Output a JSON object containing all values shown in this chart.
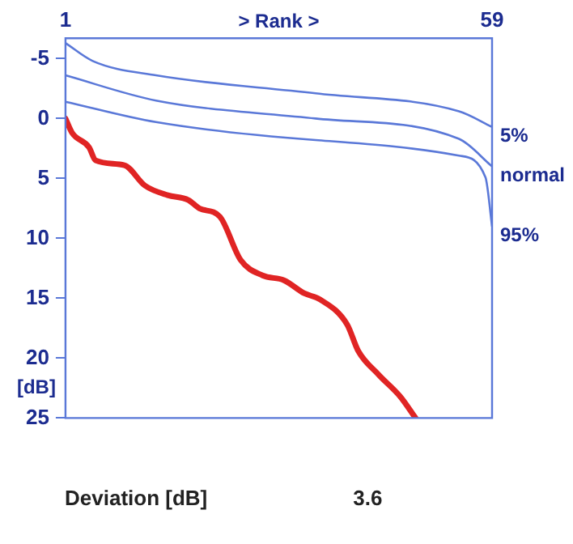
{
  "chart_data": {
    "type": "line",
    "xlabel": "> Rank >",
    "ylabel": "[dB]",
    "xlim": [
      1,
      59
    ],
    "xticks": [
      1,
      59
    ],
    "ylim": [
      25,
      -6.7
    ],
    "yticks": [
      -5,
      0,
      5,
      10,
      15,
      20,
      25
    ],
    "grid": false,
    "legend": false,
    "marker": "none",
    "line_style": "solid",
    "series": [
      {
        "name": "5%",
        "color": "#5a78d8",
        "x": [
          1,
          4.7,
          13.3,
          35,
          54.5,
          59
        ],
        "values": [
          -6.3,
          -4.8,
          -3.6,
          -2.1,
          -0.6,
          0.7
        ]
      },
      {
        "name": "normal",
        "color": "#5a78d8",
        "x": [
          1,
          13.3,
          35,
          54.5,
          59
        ],
        "values": [
          -3.6,
          -1.5,
          0,
          1.7,
          4.0
        ]
      },
      {
        "name": "95%",
        "color": "#5a78d8",
        "x": [
          1,
          13.3,
          35,
          54.5,
          58.1,
          59
        ],
        "values": [
          -1.4,
          0.3,
          1.8,
          3.1,
          4.9,
          9.0
        ]
      },
      {
        "color": "#e02424",
        "x": [
          1,
          1.9,
          4.2,
          5.1,
          9,
          11.8,
          14.9,
          17.7,
          19.2,
          22,
          24.8,
          27.8,
          30.7,
          33.5,
          35.6,
          39.3,
          40.8,
          43.6,
          46.5,
          48.6
        ],
        "values": [
          0,
          1.2,
          2.4,
          3.5,
          3.9,
          5.6,
          6.4,
          6.8,
          7.5,
          8.2,
          11.8,
          13.1,
          13.5,
          14.6,
          15.1,
          17.2,
          19.4,
          21.4,
          23.2,
          25
        ]
      }
    ],
    "annotations": [
      "Deviation [dB]",
      "3.6"
    ]
  }
}
